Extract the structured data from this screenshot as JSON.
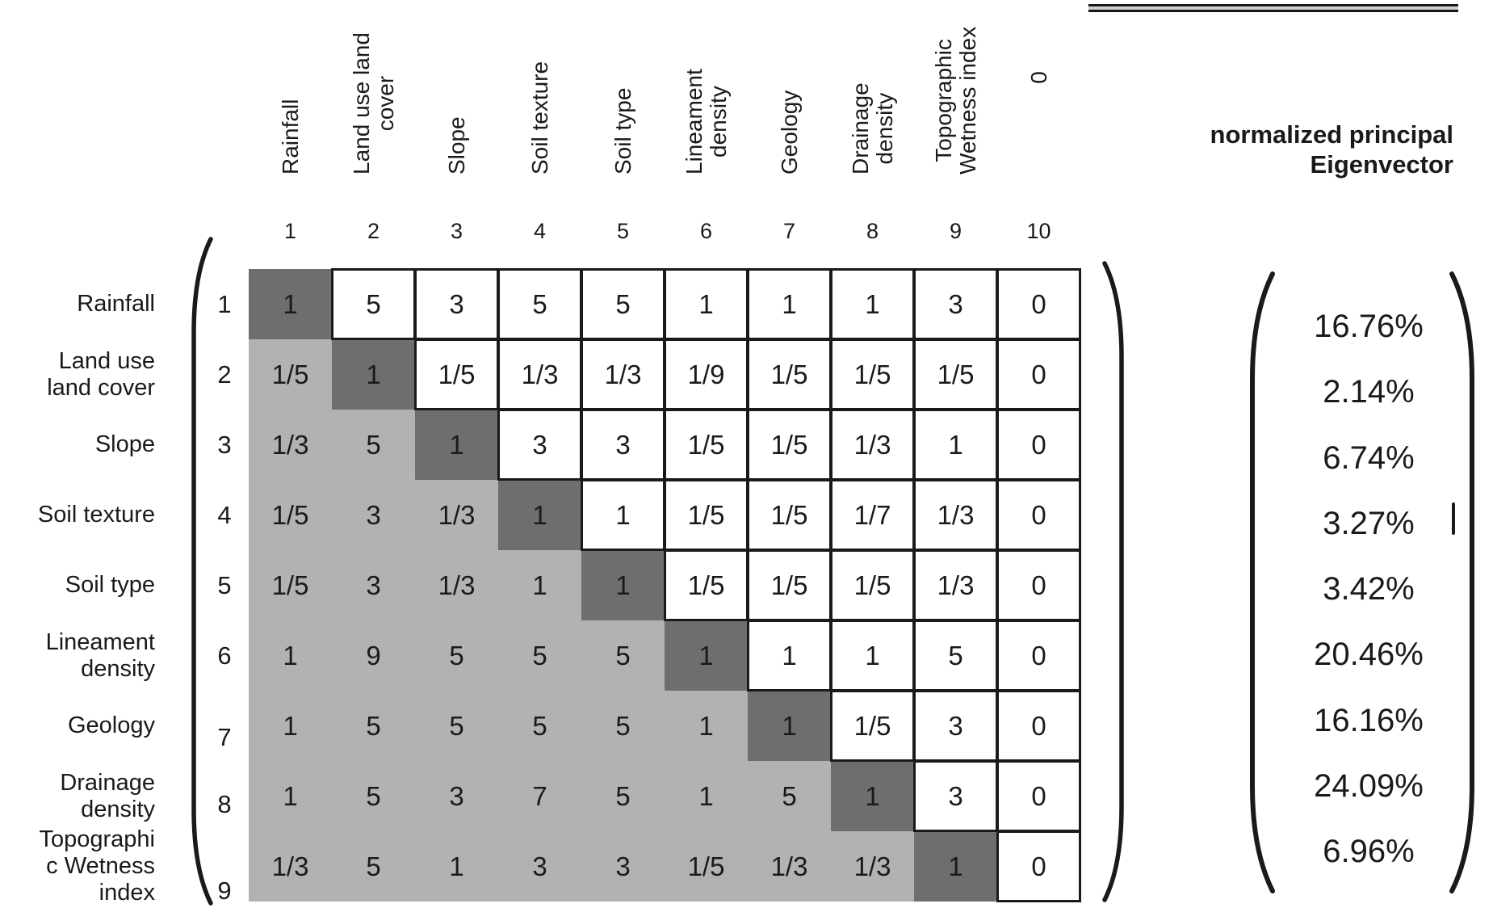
{
  "eigenvector": {
    "title_lines": [
      "normalized principal",
      "Eigenvector"
    ],
    "values": [
      "16.76%",
      "2.14%",
      "6.74%",
      "3.27%",
      "3.42%",
      "20.46%",
      "16.16%",
      "24.09%",
      "6.96%"
    ]
  },
  "matrix_table": {
    "column_headers": [
      [
        "Rainfall"
      ],
      [
        "Land use land",
        "cover"
      ],
      [
        "Slope"
      ],
      [
        "Soil texture"
      ],
      [
        "Soil type"
      ],
      [
        "Lineament",
        "density"
      ],
      [
        "Geology"
      ],
      [
        "Drainage",
        "density"
      ],
      [
        "Topographic",
        "Wetness index"
      ],
      [
        "0"
      ]
    ],
    "column_numbers": [
      "1",
      "2",
      "3",
      "4",
      "5",
      "6",
      "7",
      "8",
      "9",
      "10"
    ],
    "row_labels": [
      [
        "Rainfall"
      ],
      [
        "Land use",
        "land cover"
      ],
      [
        "Slope"
      ],
      [
        "Soil texture"
      ],
      [
        "Soil type"
      ],
      [
        "Lineament",
        "density"
      ],
      [
        "Geology"
      ],
      [
        "Drainage",
        "density"
      ],
      [
        "Topographi",
        "c Wetness",
        "index"
      ]
    ],
    "row_numbers": [
      "1",
      "2",
      "3",
      "4",
      "5",
      "6",
      "7",
      "8",
      "9"
    ],
    "values": [
      [
        "1",
        "5",
        "3",
        "5",
        "5",
        "1",
        "1",
        "1",
        "3",
        "0"
      ],
      [
        "1/5",
        "1",
        "1/5",
        "1/3",
        "1/3",
        "1/9",
        "1/5",
        "1/5",
        "1/5",
        "0"
      ],
      [
        "1/3",
        "5",
        "1",
        "3",
        "3",
        "1/5",
        "1/5",
        "1/3",
        "1",
        "0"
      ],
      [
        "1/5",
        "3",
        "1/3",
        "1",
        "1",
        "1/5",
        "1/5",
        "1/7",
        "1/3",
        "0"
      ],
      [
        "1/5",
        "3",
        "1/3",
        "1",
        "1",
        "1/5",
        "1/5",
        "1/5",
        "1/3",
        "0"
      ],
      [
        "1",
        "9",
        "5",
        "5",
        "5",
        "1",
        "1",
        "1",
        "5",
        "0"
      ],
      [
        "1",
        "5",
        "5",
        "5",
        "5",
        "1",
        "1",
        "1/5",
        "3",
        "0"
      ],
      [
        "1",
        "5",
        "3",
        "7",
        "5",
        "1",
        "5",
        "1",
        "3",
        "0"
      ],
      [
        "1/3",
        "5",
        "1",
        "3",
        "3",
        "1/5",
        "1/3",
        "1/3",
        "1",
        "0"
      ]
    ]
  },
  "colors": {
    "diagonal_fill": "#6e6e6e",
    "lower_triangle_fill": "#b2b2b2",
    "upper_cell_fill": "#ffffff",
    "grid_border": "#1a1a1a",
    "text": "#1a1a1a"
  }
}
